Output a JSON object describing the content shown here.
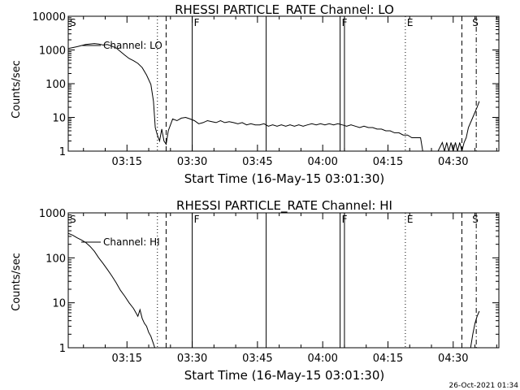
{
  "footer_timestamp": "26-Oct-2021 01:34",
  "chart_data": [
    {
      "type": "line",
      "title": "RHESSI PARTICLE_RATE Channel: LO",
      "ylabel": "Counts/sec",
      "xlabel": "Start Time (16-May-15 03:01:30)",
      "x_tick_labels": [
        "03:15",
        "03:30",
        "03:45",
        "04:00",
        "04:15",
        "04:30"
      ],
      "x_ticks_min": [
        13.5,
        28.5,
        43.5,
        58.5,
        73.5,
        88.5
      ],
      "y_tick_labels": [
        "1",
        "10",
        "100",
        "1000",
        "10000"
      ],
      "y_log": true,
      "ylim": [
        1,
        10000
      ],
      "xlim_min": [
        0,
        99
      ],
      "legend": "Channel: LO",
      "markers": [
        {
          "label": "S",
          "x_min": 0,
          "style": "label"
        },
        {
          "label": "",
          "x_min": 20.5,
          "style": "dotted"
        },
        {
          "label": "",
          "x_min": 22.5,
          "style": "dashed"
        },
        {
          "label": "F",
          "x_min": 28.5,
          "style": "solid"
        },
        {
          "label": "",
          "x_min": 45.5,
          "style": "solid"
        },
        {
          "label": "F",
          "x_min": 62.5,
          "style": "solid"
        },
        {
          "label": "",
          "x_min": 63.5,
          "style": "solid"
        },
        {
          "label": "E",
          "x_min": 77.5,
          "style": "dotted"
        },
        {
          "label": "",
          "x_min": 90.5,
          "style": "dashed"
        },
        {
          "label": "S",
          "x_min": 92.5,
          "style": "label"
        },
        {
          "label": "",
          "x_min": 93.8,
          "style": "dashdot"
        }
      ],
      "series": [
        {
          "values_min_count": [
            [
              0,
              1100
            ],
            [
              2,
              1250
            ],
            [
              4,
              1450
            ],
            [
              6,
              1550
            ],
            [
              7,
              1500
            ],
            [
              8,
              1400
            ],
            [
              9,
              1450
            ],
            [
              10,
              1300
            ],
            [
              11,
              1150
            ],
            [
              12,
              900
            ],
            [
              13,
              700
            ],
            [
              14,
              560
            ],
            [
              15,
              480
            ],
            [
              16,
              400
            ],
            [
              17,
              300
            ],
            [
              18,
              180
            ],
            [
              19,
              95
            ],
            [
              19.6,
              30
            ],
            [
              20,
              5
            ],
            [
              20.5,
              3
            ],
            [
              21,
              2
            ],
            [
              21.5,
              4.5
            ],
            [
              22,
              2
            ],
            [
              22.5,
              1.6
            ],
            [
              23,
              4
            ],
            [
              23.5,
              6
            ],
            [
              24,
              9
            ],
            [
              25,
              8
            ],
            [
              26,
              9.5
            ],
            [
              27,
              10
            ],
            [
              28,
              9
            ],
            [
              29,
              8
            ],
            [
              30,
              6.5
            ],
            [
              31,
              7
            ],
            [
              32,
              8
            ],
            [
              33,
              7.5
            ],
            [
              34,
              7
            ],
            [
              35,
              8
            ],
            [
              36,
              7
            ],
            [
              37,
              7.5
            ],
            [
              38,
              7
            ],
            [
              39,
              6.5
            ],
            [
              40,
              7
            ],
            [
              41,
              6
            ],
            [
              42,
              6.5
            ],
            [
              43,
              6
            ],
            [
              44,
              6
            ],
            [
              45,
              6.5
            ],
            [
              46,
              5.5
            ],
            [
              47,
              6
            ],
            [
              48,
              5.5
            ],
            [
              49,
              6
            ],
            [
              50,
              5.5
            ],
            [
              51,
              6
            ],
            [
              52,
              5.5
            ],
            [
              53,
              6
            ],
            [
              54,
              5.5
            ],
            [
              55,
              6
            ],
            [
              56,
              6.5
            ],
            [
              57,
              6
            ],
            [
              58,
              6.5
            ],
            [
              59,
              6
            ],
            [
              60,
              6.5
            ],
            [
              61,
              6
            ],
            [
              62,
              6.5
            ],
            [
              63,
              6
            ],
            [
              64,
              5.5
            ],
            [
              65,
              6
            ],
            [
              66,
              5.5
            ],
            [
              67,
              5
            ],
            [
              68,
              5.5
            ],
            [
              69,
              5
            ],
            [
              70,
              5
            ],
            [
              71,
              4.5
            ],
            [
              72,
              4.5
            ],
            [
              73,
              4
            ],
            [
              74,
              4
            ],
            [
              75,
              3.5
            ],
            [
              76,
              3.5
            ],
            [
              77,
              3
            ],
            [
              78,
              3
            ],
            [
              79,
              2.5
            ],
            [
              80,
              2.5
            ],
            [
              81,
              2.5
            ],
            [
              81.5,
              1
            ],
            [
              82,
              1
            ],
            [
              83,
              1
            ],
            [
              84,
              1
            ],
            [
              85,
              1
            ],
            [
              86,
              1.8
            ],
            [
              86.5,
              1
            ],
            [
              87,
              1.8
            ],
            [
              87.5,
              1
            ],
            [
              88,
              1.8
            ],
            [
              88.5,
              1
            ],
            [
              89,
              1.8
            ],
            [
              89.5,
              1
            ],
            [
              90,
              1.8
            ],
            [
              90.5,
              1
            ],
            [
              91,
              1.8
            ],
            [
              91.5,
              2.5
            ],
            [
              92,
              5
            ],
            [
              93,
              10
            ],
            [
              94,
              20
            ],
            [
              94.5,
              30
            ]
          ]
        }
      ]
    },
    {
      "type": "line",
      "title": "RHESSI PARTICLE_RATE Channel: HI",
      "ylabel": "Counts/sec",
      "xlabel": "Start Time (16-May-15 03:01:30)",
      "x_tick_labels": [
        "03:15",
        "03:30",
        "03:45",
        "04:00",
        "04:15",
        "04:30"
      ],
      "x_ticks_min": [
        13.5,
        28.5,
        43.5,
        58.5,
        73.5,
        88.5
      ],
      "y_tick_labels": [
        "1",
        "10",
        "100",
        "1000"
      ],
      "y_log": true,
      "ylim": [
        1,
        1000
      ],
      "xlim_min": [
        0,
        99
      ],
      "legend": "Channel: HI",
      "markers": [
        {
          "label": "S",
          "x_min": 0,
          "style": "label"
        },
        {
          "label": "",
          "x_min": 20.5,
          "style": "dotted"
        },
        {
          "label": "",
          "x_min": 22.5,
          "style": "dashed"
        },
        {
          "label": "F",
          "x_min": 28.5,
          "style": "solid"
        },
        {
          "label": "",
          "x_min": 45.5,
          "style": "solid"
        },
        {
          "label": "F",
          "x_min": 62.5,
          "style": "solid"
        },
        {
          "label": "",
          "x_min": 63.5,
          "style": "solid"
        },
        {
          "label": "E",
          "x_min": 77.5,
          "style": "dotted"
        },
        {
          "label": "",
          "x_min": 90.5,
          "style": "dashed"
        },
        {
          "label": "S",
          "x_min": 92.5,
          "style": "label"
        },
        {
          "label": "",
          "x_min": 93.8,
          "style": "dashdot"
        }
      ],
      "series": [
        {
          "values_min_count": [
            [
              0,
              350
            ],
            [
              1,
              320
            ],
            [
              2,
              280
            ],
            [
              3,
              250
            ],
            [
              4,
              220
            ],
            [
              5,
              180
            ],
            [
              6,
              140
            ],
            [
              7,
              100
            ],
            [
              8,
              75
            ],
            [
              9,
              55
            ],
            [
              10,
              40
            ],
            [
              11,
              28
            ],
            [
              12,
              19
            ],
            [
              13,
              14
            ],
            [
              14,
              10
            ],
            [
              15,
              7.5
            ],
            [
              16,
              5
            ],
            [
              16.5,
              7
            ],
            [
              17,
              4.5
            ],
            [
              17.5,
              3.5
            ],
            [
              18,
              3
            ],
            [
              18.5,
              2.2
            ],
            [
              19,
              1.8
            ],
            [
              19.5,
              1.3
            ],
            [
              19.9,
              1
            ]
          ]
        },
        {
          "values_min_count": [
            [
              92.5,
              1
            ],
            [
              93,
              2
            ],
            [
              93.5,
              3.5
            ],
            [
              94,
              5
            ],
            [
              94.5,
              6.5
            ]
          ]
        }
      ]
    }
  ]
}
